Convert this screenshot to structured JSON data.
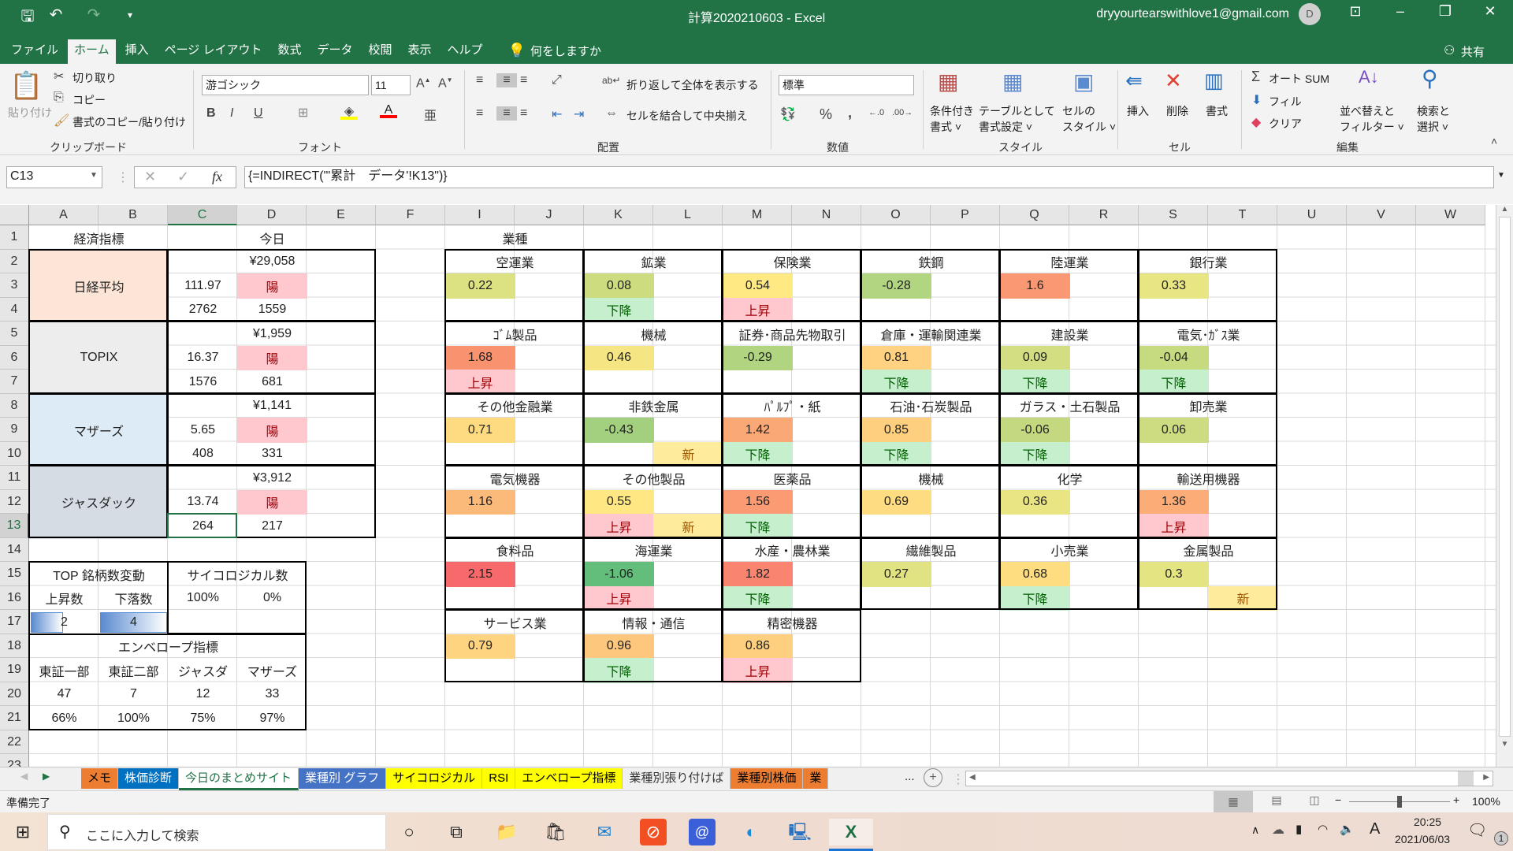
{
  "window": {
    "title": "計算2020210603  -  Excel",
    "account_email": "dryyourtearswithlove1@gmail.com",
    "avatar_initial": "D",
    "share_label": "共有"
  },
  "ribbon_tabs": [
    {
      "label": "ファイル"
    },
    {
      "label": "ホーム",
      "active": true
    },
    {
      "label": "挿入"
    },
    {
      "label": "ページ レイアウト"
    },
    {
      "label": "数式"
    },
    {
      "label": "データ"
    },
    {
      "label": "校閲"
    },
    {
      "label": "表示"
    },
    {
      "label": "ヘルプ"
    }
  ],
  "tell_me": "何をしますか",
  "ribbon": {
    "clipboard": {
      "paste": "貼り付け",
      "cut": "切り取り",
      "copy": "コピー",
      "format_painter": "書式のコピー/貼り付け",
      "group": "クリップボード"
    },
    "font": {
      "name": "游ゴシック",
      "size": "11",
      "bold": "B",
      "italic": "I",
      "underline": "U",
      "group": "フォント",
      "fill_color": "#FFFF00",
      "font_color": "#FF0000"
    },
    "alignment": {
      "wrap": "折り返して全体を表示する",
      "merge": "セルを結合して中央揃え",
      "group": "配置"
    },
    "number": {
      "format": "標準",
      "percent": "%",
      "comma": ",",
      "group": "数値"
    },
    "styles": {
      "conditional_1": "条件付き",
      "conditional_2": "書式",
      "table_1": "テーブルとして",
      "table_2": "書式設定",
      "cell_1": "セルの",
      "cell_2": "スタイル",
      "group": "スタイル"
    },
    "cells": {
      "insert": "挿入",
      "delete": "削除",
      "format": "書式",
      "group": "セル"
    },
    "editing": {
      "autosum": "オート SUM",
      "fill": "フィル",
      "clear": "クリア",
      "sort_1": "並べ替えと",
      "sort_2": "フィルター",
      "find_1": "検索と",
      "find_2": "選択",
      "group": "編集"
    }
  },
  "formula_bar": {
    "name_box": "C13",
    "formula": "{=INDIRECT(\"'累計　データ'!K13\")}",
    "fx": "fx"
  },
  "grid": {
    "columns": [
      "A",
      "B",
      "C",
      "D",
      "E",
      "F",
      "I",
      "J",
      "K",
      "L",
      "M",
      "N",
      "O",
      "P",
      "Q",
      "R",
      "S",
      "T",
      "U",
      "V",
      "W"
    ],
    "rows": [
      "1",
      "2",
      "3",
      "4",
      "5",
      "6",
      "7",
      "8",
      "9",
      "10",
      "11",
      "12",
      "13",
      "14",
      "15",
      "16",
      "17",
      "18",
      "19",
      "20",
      "21",
      "22",
      "23"
    ],
    "selected_cell": "C13"
  },
  "left": {
    "header_indicator": "経済指標",
    "header_today": "今日",
    "candle_bg": "#FFC7CE",
    "candle_fg": "#9C0006",
    "indices": [
      {
        "name": "日経平均",
        "bg": "#FCE4D6",
        "price": "¥29,058",
        "change": "111.97",
        "candle": "陽",
        "up": "2762",
        "down": "1559"
      },
      {
        "name": "TOPIX",
        "bg": "#EDEDED",
        "price": "¥1,959",
        "change": "16.37",
        "candle": "陽",
        "up": "1576",
        "down": "681"
      },
      {
        "name": "マザーズ",
        "bg": "#DDEBF7",
        "price": "¥1,141",
        "change": "5.65",
        "candle": "陽",
        "up": "408",
        "down": "331"
      },
      {
        "name": "ジャスダック",
        "bg": "#D6DCE4",
        "price": "¥3,912",
        "change": "13.74",
        "candle": "陽",
        "up": "264",
        "down": "217"
      }
    ],
    "top_change": {
      "title": "TOP 銘柄数変動",
      "up_label": "上昇数",
      "down_label": "下落数",
      "up": "2",
      "down": "4",
      "up_fill": 0.5,
      "down_fill": 1.0,
      "bar_color": "#5B8BD0"
    },
    "psych": {
      "title": "サイコロジカル数",
      "a": "100%",
      "b": "0%"
    },
    "envelope": {
      "title": "エンベロープ指標",
      "labels": [
        "東証一部",
        "東証二部",
        "ジャスダ",
        "マザーズ"
      ],
      "counts": [
        "47",
        "7",
        "12",
        "33"
      ],
      "pcts": [
        "66%",
        "100%",
        "75%",
        "97%"
      ]
    }
  },
  "industry": {
    "title": "業種",
    "trend_colors": {
      "上昇": {
        "bg": "#FFC7CE",
        "fg": "#9C0006"
      },
      "下降": {
        "bg": "#C6EFCE",
        "fg": "#006100"
      },
      "新": {
        "bg": "#FFEB9C",
        "fg": "#9C5700"
      }
    },
    "blocks": [
      [
        {
          "name": "空運業",
          "value": "0.22",
          "color": "#DCE182"
        },
        {
          "name": "鉱業",
          "value": "0.08",
          "color": "#CCDC7E",
          "trend": "下降"
        },
        {
          "name": "保険業",
          "value": "0.54",
          "color": "#FEE983",
          "trend": "上昇"
        },
        {
          "name": "鉄鋼",
          "value": "-0.28",
          "color": "#B1D580"
        },
        {
          "name": "陸運業",
          "value": "1.6",
          "color": "#FA9873"
        },
        {
          "name": "銀行業",
          "value": "0.33",
          "color": "#E8E583"
        }
      ],
      [
        {
          "name": "ｺﾞﾑ製品",
          "value": "1.68",
          "color": "#F8926F",
          "trend": "上昇"
        },
        {
          "name": "機械",
          "value": "0.46",
          "color": "#F5E683"
        },
        {
          "name": "証券･商品先物取引",
          "value": "-0.29",
          "color": "#B0D47F"
        },
        {
          "name": "倉庫・運輸関連業",
          "value": "0.81",
          "color": "#FED280",
          "trend": "下降"
        },
        {
          "name": "建設業",
          "value": "0.09",
          "color": "#D3DE82",
          "trend": "下降"
        },
        {
          "name": "電気･ｶﾞｽ業",
          "value": "-0.04",
          "color": "#C6DA80",
          "trend": "下降"
        }
      ],
      [
        {
          "name": "その他金融業",
          "value": "0.71",
          "color": "#FEDB81"
        },
        {
          "name": "非鉄金属",
          "value": "-0.43",
          "color": "#A2D07F",
          "new": "新"
        },
        {
          "name": "ﾊﾟﾙﾌﾟ・紙",
          "value": "1.42",
          "color": "#FBA877",
          "trend": "下降"
        },
        {
          "name": "石油･石炭製品",
          "value": "0.85",
          "color": "#FECF7F",
          "trend": "下降"
        },
        {
          "name": "ガラス・土石製品",
          "value": "-0.06",
          "color": "#C4D97F",
          "trend": "下降"
        },
        {
          "name": "卸売業",
          "value": "0.06",
          "color": "#CEDC81"
        }
      ],
      [
        {
          "name": "電気機器",
          "value": "1.16",
          "color": "#FCBA7A"
        },
        {
          "name": "その他製品",
          "value": "0.55",
          "color": "#FFE883",
          "trend": "上昇",
          "new": "新"
        },
        {
          "name": "医薬品",
          "value": "1.56",
          "color": "#FA9B74",
          "trend": "下降"
        },
        {
          "name": "機械",
          "value": "0.69",
          "color": "#FEDC81"
        },
        {
          "name": "化学",
          "value": "0.36",
          "color": "#EAE583"
        },
        {
          "name": "輸送用機器",
          "value": "1.36",
          "color": "#FCAC77",
          "trend": "上昇"
        }
      ],
      [
        {
          "name": "食料品",
          "value": "2.15",
          "color": "#F8696B"
        },
        {
          "name": "海運業",
          "value": "-1.06",
          "color": "#63BE7B",
          "trend": "上昇"
        },
        {
          "name": "水産・農林業",
          "value": "1.82",
          "color": "#F98570",
          "trend": "下降"
        },
        {
          "name": "繊維製品",
          "value": "0.27",
          "color": "#E1E383"
        },
        {
          "name": "小売業",
          "value": "0.68",
          "color": "#FEDD81",
          "trend": "下降"
        },
        {
          "name": "金属製品",
          "value": "0.3",
          "color": "#E4E483",
          "new": "新"
        }
      ],
      [
        {
          "name": "サービス業",
          "value": "0.79",
          "color": "#FED480"
        },
        {
          "name": "情報・通信",
          "value": "0.96",
          "color": "#FDC87D",
          "trend": "下降"
        },
        {
          "name": "精密機器",
          "value": "0.86",
          "color": "#FECF7F",
          "trend": "上昇"
        }
      ]
    ]
  },
  "sheet_tabs": [
    {
      "label": "メモ",
      "bg": "#ED7D31",
      "fg": "#000000"
    },
    {
      "label": "株価診断",
      "bg": "#0070C0",
      "fg": "#FFFFFF"
    },
    {
      "label": "今日のまとめサイト",
      "bg": "#FFFFFF",
      "fg": "#217346",
      "active": true
    },
    {
      "label": "業種別  グラフ",
      "bg": "#4472C4",
      "fg": "#FFFFFF"
    },
    {
      "label": "サイコロジカル",
      "bg": "#FFFF00",
      "fg": "#000000"
    },
    {
      "label": "RSI",
      "bg": "#FFFF00",
      "fg": "#000000"
    },
    {
      "label": "エンベロープ指標",
      "bg": "#FFFF00",
      "fg": "#000000"
    },
    {
      "label": "業種別張り付けば",
      "bg": "#F0F0F0",
      "fg": "#333333"
    },
    {
      "label": "業種別株価",
      "bg": "#ED7D31",
      "fg": "#000000"
    },
    {
      "label": "業",
      "bg": "#ED7D31",
      "fg": "#000000"
    }
  ],
  "sheet_tabs_more": "...",
  "status": {
    "ready": "準備完了",
    "zoom": "100%",
    "zoom_level": 100
  },
  "taskbar": {
    "search_placeholder": "ここに入力して検索",
    "time": "20:25",
    "date": "2021/06/03",
    "notifications": "1",
    "ime": "A"
  }
}
